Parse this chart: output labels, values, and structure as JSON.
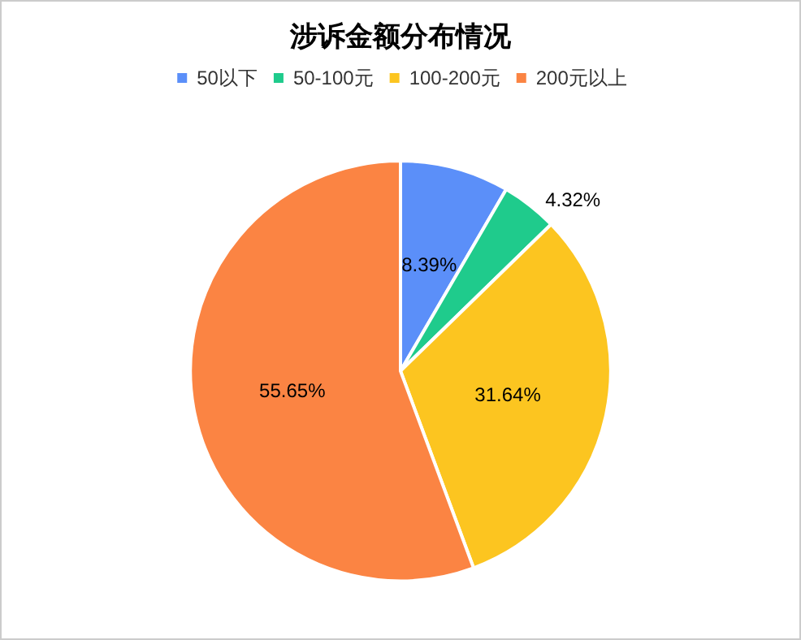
{
  "chart_data": {
    "type": "pie",
    "title": "涉诉金额分布情况",
    "categories": [
      "50以下",
      "50-100元",
      "100-200元",
      "200元以上"
    ],
    "values": [
      8.39,
      4.32,
      31.64,
      55.65
    ],
    "colors": [
      "#5b8ff9",
      "#1fcb8c",
      "#fcc520",
      "#fb8443"
    ],
    "value_labels": [
      "8.39%",
      "4.32%",
      "31.64%",
      "55.65%"
    ],
    "legend": "top"
  }
}
